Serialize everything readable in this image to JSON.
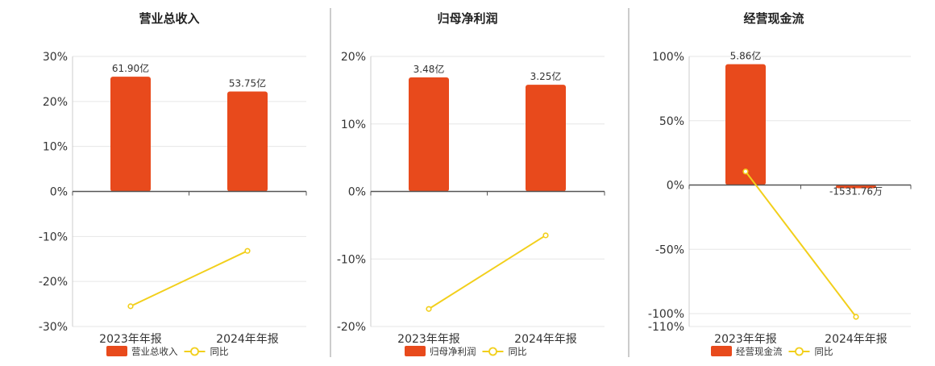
{
  "page": {
    "line_color": "#f2cf1b",
    "bar_color": "#e84a1c"
  },
  "chart_data": [
    {
      "type": "bar",
      "title": "营业总收入",
      "categories": [
        "2023年年报",
        "2024年年报"
      ],
      "bar_series": {
        "name": "营业总收入",
        "values": [
          25.5,
          22.2
        ],
        "labels": [
          "61.90亿",
          "53.75亿"
        ]
      },
      "line_series": {
        "name": "同比",
        "values": [
          -25.5,
          -13.2
        ]
      },
      "ylim": [
        -30,
        30
      ],
      "yticks": [
        30,
        20,
        10,
        0,
        -10,
        -20,
        -30
      ],
      "yticklabels": [
        "30%",
        "20%",
        "10%",
        "0%",
        "-10%",
        "-20%",
        "-30%"
      ],
      "grid": true,
      "legend": "bottom"
    },
    {
      "type": "bar",
      "title": "归母净利润",
      "categories": [
        "2023年年报",
        "2024年年报"
      ],
      "bar_series": {
        "name": "归母净利润",
        "values": [
          16.9,
          15.8
        ],
        "labels": [
          "3.48亿",
          "3.25亿"
        ]
      },
      "line_series": {
        "name": "同比",
        "values": [
          -17.4,
          -6.5
        ]
      },
      "ylim": [
        -20,
        20
      ],
      "yticks": [
        20,
        10,
        0,
        -10,
        -20
      ],
      "yticklabels": [
        "20%",
        "10%",
        "0%",
        "-10%",
        "-20%"
      ],
      "grid": true,
      "legend": "bottom"
    },
    {
      "type": "bar",
      "title": "经营现金流",
      "categories": [
        "2023年年报",
        "2024年年报"
      ],
      "bar_series": {
        "name": "经营现金流",
        "values": [
          94,
          -2.5
        ],
        "labels": [
          "5.86亿",
          "-1531.76万"
        ]
      },
      "line_series": {
        "name": "同比",
        "values": [
          10.5,
          -102.5
        ]
      },
      "ylim": [
        -110,
        100
      ],
      "yticks": [
        100,
        50,
        0,
        -50,
        -100,
        -110
      ],
      "yticklabels": [
        "100%",
        "50%",
        "0%",
        "-50%",
        "-100%",
        "-110%"
      ],
      "grid": true,
      "legend": "bottom"
    }
  ]
}
